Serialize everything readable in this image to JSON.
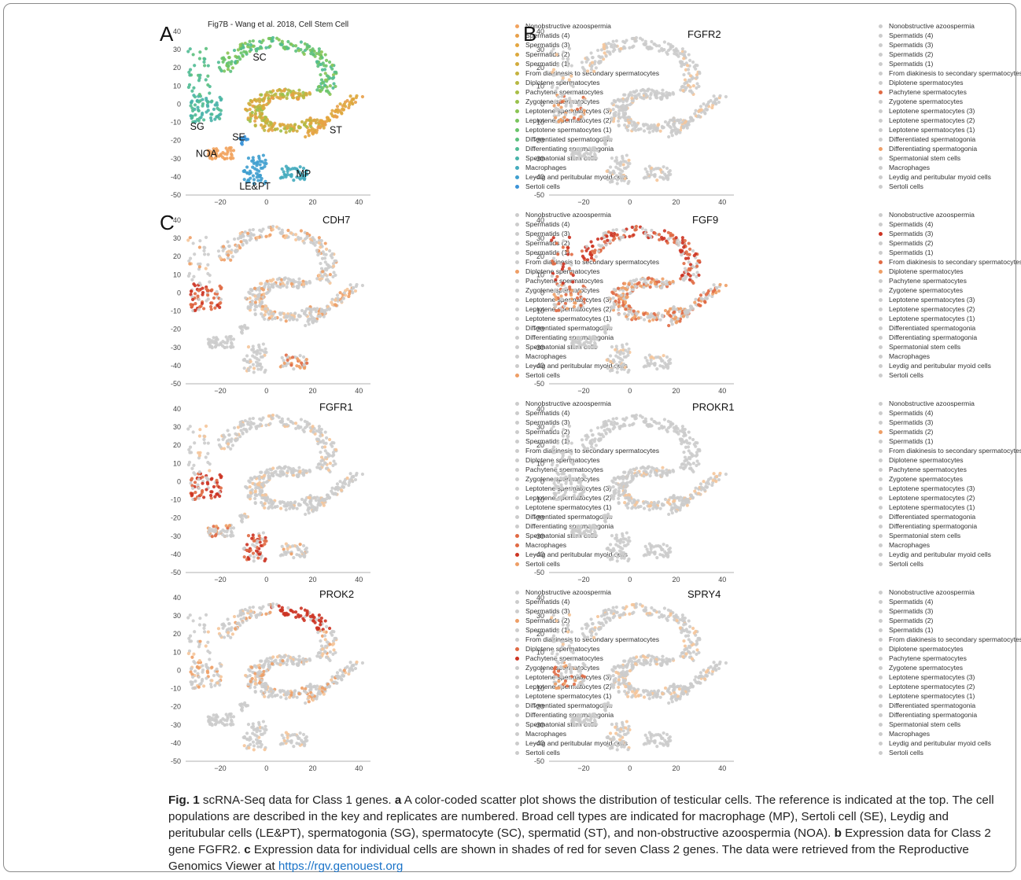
{
  "categories": [
    "Nonobstructive azoospermia",
    "Spermatids (4)",
    "Spermatids (3)",
    "Spermatids (2)",
    "Spermatids (1)",
    "From diakinesis to secondary spermatocytes",
    "Diplotene spermatocytes",
    "Pachytene spermatocytes",
    "Zygotene spermatocytes",
    "Leptotene spermatocytes (3)",
    "Leptotene spermatocytes (2)",
    "Leptotene spermatocytes (1)",
    "Differentiated spermatogonia",
    "Differentiating spermatogonia",
    "Spermatonial stem cells",
    "Macrophages",
    "Leydig and peritubular myoid cells",
    "Sertoli cells"
  ],
  "colors": {
    "A": [
      "#f2a35e",
      "#e8a04a",
      "#e4a640",
      "#dca83c",
      "#d2ab3c",
      "#c5b23f",
      "#b7b842",
      "#a9be46",
      "#99c14c",
      "#8ac453",
      "#79c45d",
      "#6ac46a",
      "#5cc07d",
      "#50bb94",
      "#48b3aa",
      "#44abbe",
      "#3f9fcf",
      "#3b93d8"
    ],
    "grey": "#cccccc",
    "light": "#f5c59a",
    "mid": "#ee9e66",
    "strong": "#e06a44",
    "dark": "#cc3322"
  },
  "chart_data": [
    {
      "type": "scatter",
      "panel": "A",
      "title": "Fig7B - Wang et al. 2018, Cell Stem Cell",
      "xlim": [
        -35,
        45
      ],
      "ylim": [
        -50,
        40
      ],
      "xticks": [
        -20,
        0,
        20,
        40
      ],
      "yticks": [
        40,
        30,
        20,
        10,
        0,
        -10,
        -20,
        -30,
        -40,
        -50
      ],
      "cluster_labels": [
        {
          "text": "SC",
          "x": -3,
          "y": 24
        },
        {
          "text": "SG",
          "x": -30,
          "y": -14
        },
        {
          "text": "SE",
          "x": -12,
          "y": -20
        },
        {
          "text": "ST",
          "x": 30,
          "y": -16
        },
        {
          "text": "NOA",
          "x": -26,
          "y": -29
        },
        {
          "text": "MP",
          "x": 16,
          "y": -40
        },
        {
          "text": "LE&PT",
          "x": -5,
          "y": -47
        }
      ],
      "legend": [
        0,
        0,
        0,
        0,
        0,
        0,
        0,
        0,
        0,
        0,
        0,
        0,
        0,
        0,
        0,
        0,
        0,
        0
      ]
    },
    {
      "type": "scatter",
      "panel": "B",
      "gene": "FGFR2",
      "xlim": [
        -35,
        45
      ],
      "ylim": [
        -50,
        40
      ],
      "xticks": [
        -20,
        0,
        20,
        40
      ],
      "yticks": [
        40,
        30,
        20,
        10,
        0,
        -10,
        -20,
        -30,
        -40,
        -50
      ],
      "expression": {
        "SC": 1,
        "ST": 1,
        "SG": 3,
        "NOA": 0,
        "SE": 0,
        "LEPT": 1,
        "MP": 1
      },
      "legend": [
        0,
        0,
        0,
        0,
        0,
        0,
        0,
        2,
        0,
        0,
        0,
        0,
        0,
        1,
        0,
        0,
        0,
        0
      ]
    },
    {
      "type": "scatter",
      "panel": "C",
      "gene": "CDH7",
      "xlim": [
        -35,
        45
      ],
      "ylim": [
        -50,
        40
      ],
      "xticks": [
        -20,
        0,
        20,
        40
      ],
      "yticks": [
        40,
        30,
        20,
        10,
        0,
        -10,
        -20,
        -30,
        -40,
        -50
      ],
      "expression": {
        "SC": 2,
        "ST": 2,
        "SG": 4,
        "NOA": 0,
        "SE": 0,
        "LEPT": 1,
        "MP": 3
      },
      "legend": [
        0,
        0,
        0,
        0,
        0,
        0,
        1,
        0,
        0,
        0,
        0,
        0,
        0,
        0,
        0,
        0,
        0,
        1
      ]
    },
    {
      "type": "scatter",
      "panel": "C",
      "gene": "FGF9",
      "xlim": [
        -35,
        45
      ],
      "ylim": [
        -50,
        40
      ],
      "xticks": [
        -20,
        0,
        20,
        40
      ],
      "yticks": [
        40,
        30,
        20,
        10,
        0,
        -10,
        -20,
        -30,
        -40,
        -50
      ],
      "expression": {
        "SC": 4,
        "ST": 3,
        "SG": 3,
        "NOA": 0,
        "SE": 0,
        "LEPT": 1,
        "MP": 1
      },
      "legend": [
        0,
        0,
        3,
        0,
        0,
        2,
        1,
        0,
        0,
        0,
        0,
        0,
        0,
        0,
        0,
        0,
        0,
        0
      ]
    },
    {
      "type": "scatter",
      "panel": "C",
      "gene": "FGFR1",
      "xlim": [
        -35,
        45
      ],
      "ylim": [
        -50,
        40
      ],
      "xticks": [
        -20,
        0,
        20,
        40
      ],
      "yticks": [
        40,
        30,
        20,
        10,
        0,
        -10,
        -20,
        -30,
        -40,
        -50
      ],
      "expression": {
        "SC": 1,
        "ST": 1,
        "SG": 4,
        "NOA": 3,
        "SE": 1,
        "LEPT": 4,
        "MP": 2
      },
      "legend": [
        0,
        0,
        0,
        0,
        0,
        0,
        0,
        0,
        0,
        0,
        0,
        0,
        0,
        0,
        2,
        2,
        3,
        1
      ]
    },
    {
      "type": "scatter",
      "panel": "C",
      "gene": "PROKR1",
      "xlim": [
        -35,
        45
      ],
      "ylim": [
        -50,
        40
      ],
      "xticks": [
        -20,
        0,
        20,
        40
      ],
      "yticks": [
        40,
        30,
        20,
        10,
        0,
        -10,
        -20,
        -30,
        -40,
        -50
      ],
      "expression": {
        "SC": 0,
        "ST": 1,
        "SG": 0,
        "NOA": 0,
        "SE": 0,
        "LEPT": 0,
        "MP": 0
      },
      "legend": [
        0,
        0,
        0,
        1,
        0,
        0,
        0,
        0,
        0,
        0,
        0,
        0,
        0,
        0,
        0,
        0,
        0,
        0
      ]
    },
    {
      "type": "scatter",
      "panel": "C",
      "gene": "PROK2",
      "xlim": [
        -35,
        45
      ],
      "ylim": [
        -50,
        40
      ],
      "xticks": [
        -20,
        0,
        20,
        40
      ],
      "yticks": [
        40,
        30,
        20,
        10,
        0,
        -10,
        -20,
        -30,
        -40,
        -50
      ],
      "expression": {
        "SC": 2,
        "SCtop": 5,
        "ST": 2,
        "SG": 2,
        "NOA": 0,
        "SE": 0,
        "LEPT": 1,
        "MP": 1
      },
      "legend": [
        0,
        0,
        0,
        1,
        0,
        0,
        2,
        3,
        0,
        0,
        0,
        0,
        0,
        0,
        0,
        0,
        0,
        0
      ]
    },
    {
      "type": "scatter",
      "panel": "C",
      "gene": "SPRY4",
      "xlim": [
        -35,
        45
      ],
      "ylim": [
        -50,
        40
      ],
      "xticks": [
        -20,
        0,
        20,
        40
      ],
      "yticks": [
        40,
        30,
        20,
        10,
        0,
        -10,
        -20,
        -30,
        -40,
        -50
      ],
      "expression": {
        "SC": 1,
        "ST": 1,
        "SG": 3,
        "NOA": 0,
        "SE": 0,
        "LEPT": 1,
        "MP": 0
      },
      "legend": [
        0,
        0,
        0,
        0,
        0,
        0,
        0,
        0,
        0,
        0,
        0,
        0,
        0,
        0,
        0,
        0,
        0,
        0
      ]
    }
  ],
  "caption": {
    "fig": "Fig. 1",
    "p1": " scRNA-Seq data for Class 1 genes. ",
    "a": "a",
    "p2": " A color-coded scatter plot shows the distribution of testicular cells. The reference is indicated at the top. The cell populations are described in the key and replicates are numbered. Broad cell types are indicated for macrophage (MP), Sertoli cell (SE), Leydig and peritubular cells (LE&PT), spermatogonia (SG), spermatocyte (SC), spermatid (ST), and non-obstructive azoospermia (NOA). ",
    "b": "b",
    "p3": " Expression data for Class 2 gene FGFR2. ",
    "c": "c",
    "p4": " Expression data for individual cells are shown in shades of red for seven Class 2 genes. The data were retrieved from the Reproductive Genomics Viewer at ",
    "link": "https://rgv.genouest.org"
  }
}
